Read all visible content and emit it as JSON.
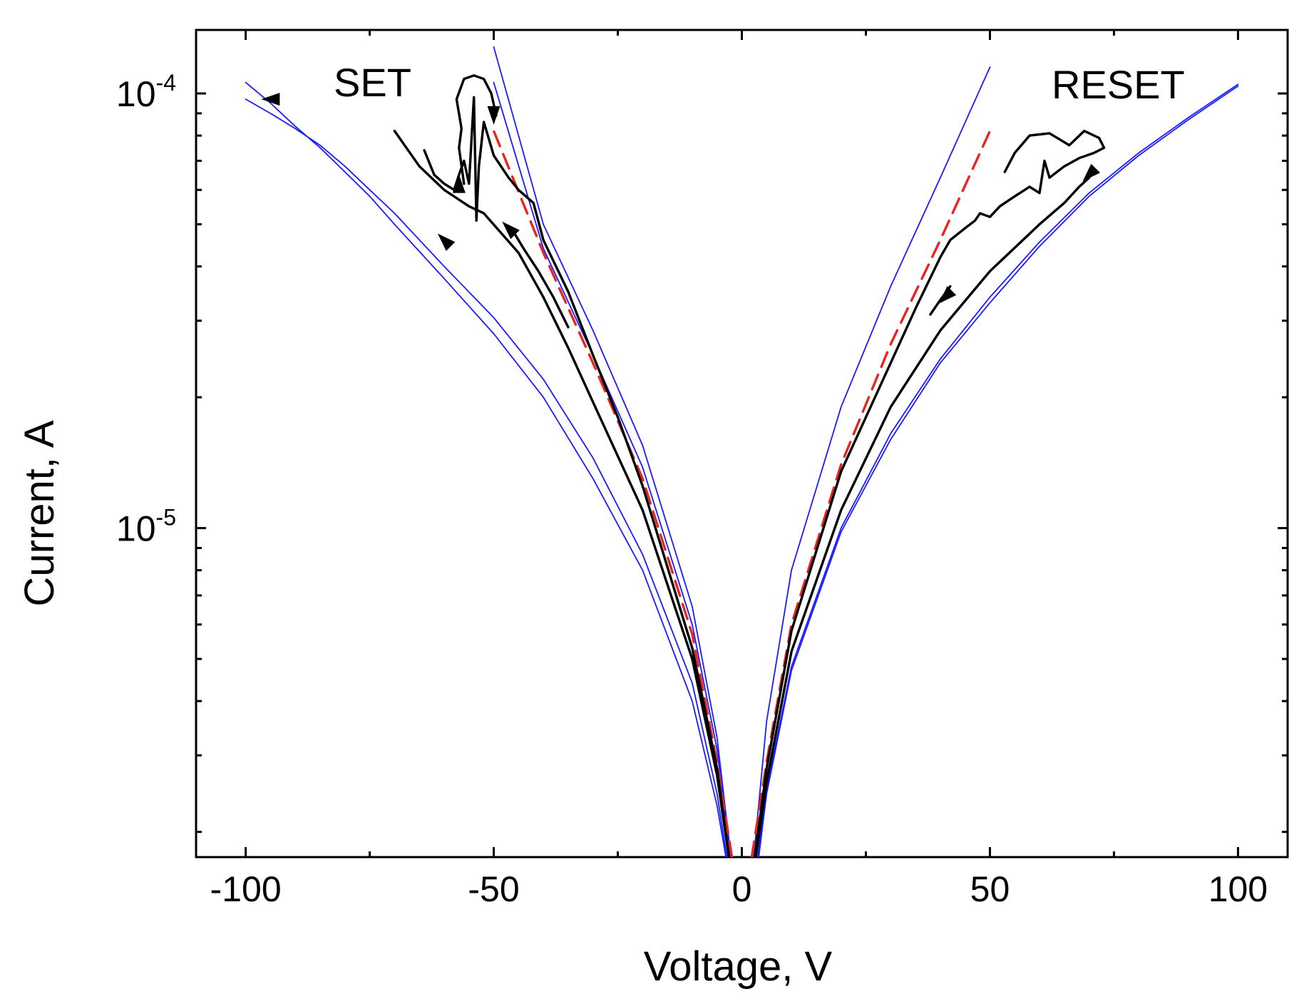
{
  "chart_data": {
    "type": "line",
    "title": "",
    "xlabel": "Voltage, V",
    "ylabel": "Current, A",
    "xlim": [
      -110,
      110
    ],
    "ylim": [
      1.75e-06,
      0.00014
    ],
    "yscale": "log",
    "grid": false,
    "legend": "none",
    "x_ticks": [
      {
        "value": -100,
        "label": "-100"
      },
      {
        "value": -50,
        "label": "-50"
      },
      {
        "value": 0,
        "label": "0"
      },
      {
        "value": 50,
        "label": "50"
      },
      {
        "value": 100,
        "label": "100"
      }
    ],
    "y_ticks": [
      {
        "value": 1e-05,
        "base": "10",
        "exp": "-5"
      },
      {
        "value": 0.0001,
        "base": "10",
        "exp": "-4"
      }
    ],
    "annotations": [
      {
        "text": "SET",
        "x": -82,
        "y": 0.0001
      },
      {
        "text": "RESET",
        "x": 75,
        "y": 0.0001
      }
    ],
    "series": [
      {
        "color": "#1a1aff",
        "style": "solid",
        "x": [
          -3.2,
          -5,
          -10,
          -20,
          -30,
          -40,
          -50,
          -60,
          -70,
          -75,
          -80,
          -85,
          -90,
          -95,
          -100
        ],
        "y": [
          1.75e-06,
          2.3e-06,
          4e-06,
          8e-06,
          1.3e-05,
          2e-05,
          2.8e-05,
          3.75e-05,
          5e-05,
          5.8e-05,
          6.6e-05,
          7.5e-05,
          8.4e-05,
          9.5e-05,
          0.000106
        ]
      },
      {
        "color": "#1a1aff",
        "style": "solid",
        "x": [
          -3.0,
          -5,
          -10,
          -20,
          -30,
          -40,
          -50,
          -60,
          -70,
          -75,
          -80,
          -85,
          -90,
          -95,
          -100
        ],
        "y": [
          1.75e-06,
          2.45e-06,
          4.4e-06,
          8.7e-06,
          1.45e-05,
          2.2e-05,
          3.05e-05,
          4e-05,
          5.3e-05,
          6e-05,
          6.8e-05,
          7.6e-05,
          8.3e-05,
          9e-05,
          9.7e-05
        ]
      },
      {
        "color": "#1a1aff",
        "style": "solid",
        "x": [
          -2.2,
          -5,
          -10,
          -20,
          -30,
          -40,
          -50
        ],
        "y": [
          1.75e-06,
          3.3e-06,
          6.6e-06,
          1.55e-05,
          2.85e-05,
          5e-05,
          0.000128
        ]
      },
      {
        "color": "#1a1aff",
        "style": "solid",
        "x": [
          -2.4,
          -5,
          -10,
          -20,
          -30,
          -40,
          -50
        ],
        "y": [
          1.75e-06,
          3.1e-06,
          6e-06,
          1.38e-05,
          2.5e-05,
          4.4e-05,
          0.000106
        ]
      },
      {
        "color": "#1a1aff",
        "style": "solid",
        "x": [
          2.4,
          5,
          10,
          20,
          30,
          40,
          50
        ],
        "y": [
          1.75e-06,
          3.6e-06,
          8e-06,
          1.9e-05,
          3.6e-05,
          6.4e-05,
          0.000115
        ]
      },
      {
        "color": "#1a1aff",
        "style": "solid",
        "x": [
          3.2,
          5,
          10,
          20,
          30,
          40,
          50,
          60,
          70,
          80,
          90,
          100
        ],
        "y": [
          1.75e-06,
          2.5e-06,
          4.8e-06,
          1e-05,
          1.65e-05,
          2.45e-05,
          3.4e-05,
          4.55e-05,
          5.9e-05,
          7.3e-05,
          8.8e-05,
          0.000105
        ]
      },
      {
        "color": "#1a1aff",
        "style": "solid",
        "x": [
          3.4,
          5,
          10,
          20,
          30,
          40,
          50,
          60,
          70,
          80,
          90,
          100
        ],
        "y": [
          1.75e-06,
          2.45e-06,
          4.7e-06,
          9.8e-06,
          1.6e-05,
          2.4e-05,
          3.3e-05,
          4.45e-05,
          5.8e-05,
          7.2e-05,
          8.7e-05,
          0.000104
        ]
      },
      {
        "color": "#e8261f",
        "style": "dashed",
        "x": [
          -2.0,
          -5,
          -10,
          -20,
          -30,
          -40,
          -50
        ],
        "y": [
          1.75e-06,
          2.9e-06,
          5.7e-06,
          1.3e-05,
          2.4e-05,
          4.3e-05,
          8.2e-05
        ]
      },
      {
        "color": "#e8261f",
        "style": "dashed",
        "x": [
          2.0,
          5,
          10,
          20,
          30,
          40,
          50
        ],
        "y": [
          1.75e-06,
          2.9e-06,
          6e-06,
          1.4e-05,
          2.65e-05,
          4.6e-05,
          8.2e-05
        ]
      },
      {
        "color": "#000000",
        "style": "solid",
        "x": [
          -2.6,
          -5,
          -10,
          -20,
          -30,
          -35,
          -40,
          -45,
          -48,
          -52,
          -55,
          -60,
          -65,
          -70
        ],
        "y": [
          1.75e-06,
          2.7e-06,
          5e-06,
          1.1e-05,
          1.95e-05,
          2.6e-05,
          3.4e-05,
          4.3e-05,
          4.7e-05,
          5.3e-05,
          5.5e-05,
          6e-05,
          6.8e-05,
          8.2e-05
        ]
      },
      {
        "color": "#000000",
        "style": "solid",
        "x": [
          -2.6,
          -5,
          -10,
          -20,
          -25,
          -30,
          -35,
          -40,
          -42,
          -45,
          -47,
          -50,
          -52,
          -53,
          -53.5,
          -54,
          -55,
          -56,
          -57,
          -58,
          -60,
          -62,
          -64
        ],
        "y": [
          1.75e-06,
          2.8e-06,
          5.3e-06,
          1.25e-05,
          1.8e-05,
          2.5e-05,
          3.5e-05,
          4.6e-05,
          5.6e-05,
          6e-05,
          6.4e-05,
          7.2e-05,
          8.6e-05,
          6.8e-05,
          5.1e-05,
          9.8e-05,
          6.2e-05,
          7e-05,
          6.5e-05,
          6e-05,
          6.2e-05,
          6.5e-05,
          7.4e-05
        ]
      },
      {
        "color": "#000000",
        "style": "solid",
        "x": [
          -56,
          -57,
          -56.5,
          -57.5,
          -56,
          -54,
          -52,
          -50.5,
          -49.5
        ],
        "y": [
          6.2e-05,
          7.5e-05,
          8.3e-05,
          9.7e-05,
          0.000108,
          0.00011,
          0.000108,
          0.0001,
          8.9e-05
        ]
      },
      {
        "color": "#000000",
        "style": "solid",
        "x": [
          -35,
          -38,
          -41,
          -44,
          -46
        ],
        "y": [
          2.9e-05,
          3.4e-05,
          3.9e-05,
          4.4e-05,
          4.8e-05
        ]
      },
      {
        "color": "#000000",
        "style": "solid",
        "x": [
          2.8,
          5,
          10,
          20,
          30,
          40,
          50,
          60,
          65,
          68,
          70
        ],
        "y": [
          1.75e-06,
          2.6e-06,
          5.2e-06,
          1.1e-05,
          1.9e-05,
          2.85e-05,
          3.9e-05,
          5e-05,
          5.6e-05,
          6.1e-05,
          6.4e-05
        ]
      },
      {
        "color": "#000000",
        "style": "solid",
        "x": [
          2.6,
          5,
          10,
          20,
          30,
          35,
          40,
          42,
          45,
          47,
          48,
          50,
          52,
          55,
          58,
          60,
          61,
          62,
          65,
          68,
          71,
          73,
          72,
          69,
          66,
          62,
          58,
          55,
          53
        ],
        "y": [
          1.75e-06,
          2.8e-06,
          5.8e-06,
          1.35e-05,
          2.4e-05,
          3.2e-05,
          4.2e-05,
          4.6e-05,
          4.9e-05,
          5.1e-05,
          5.3e-05,
          5.2e-05,
          5.5e-05,
          5.8e-05,
          6.1e-05,
          5.9e-05,
          7e-05,
          6.4e-05,
          6.8e-05,
          7.1e-05,
          7.3e-05,
          7.5e-05,
          7.9e-05,
          8.2e-05,
          7.6e-05,
          8.1e-05,
          8e-05,
          7.3e-05,
          6.6e-05
        ]
      },
      {
        "color": "#000000",
        "style": "solid",
        "x": [
          42,
          40,
          38
        ],
        "y": [
          3.6e-05,
          3.35e-05,
          3.1e-05
        ]
      }
    ],
    "arrows": [
      {
        "x": -57,
        "y": 6.2e-05,
        "dir": "up"
      },
      {
        "x": -47,
        "y": 4.9e-05,
        "dir": "up-left"
      },
      {
        "x": -60,
        "y": 4.6e-05,
        "dir": "up-left"
      },
      {
        "x": -50,
        "y": 8.9e-05,
        "dir": "down"
      },
      {
        "x": -95,
        "y": 9.7e-05,
        "dir": "left"
      },
      {
        "x": 70,
        "y": 6.5e-05,
        "dir": "down-left"
      },
      {
        "x": 41,
        "y": 3.4e-05,
        "dir": "down-left"
      }
    ]
  }
}
